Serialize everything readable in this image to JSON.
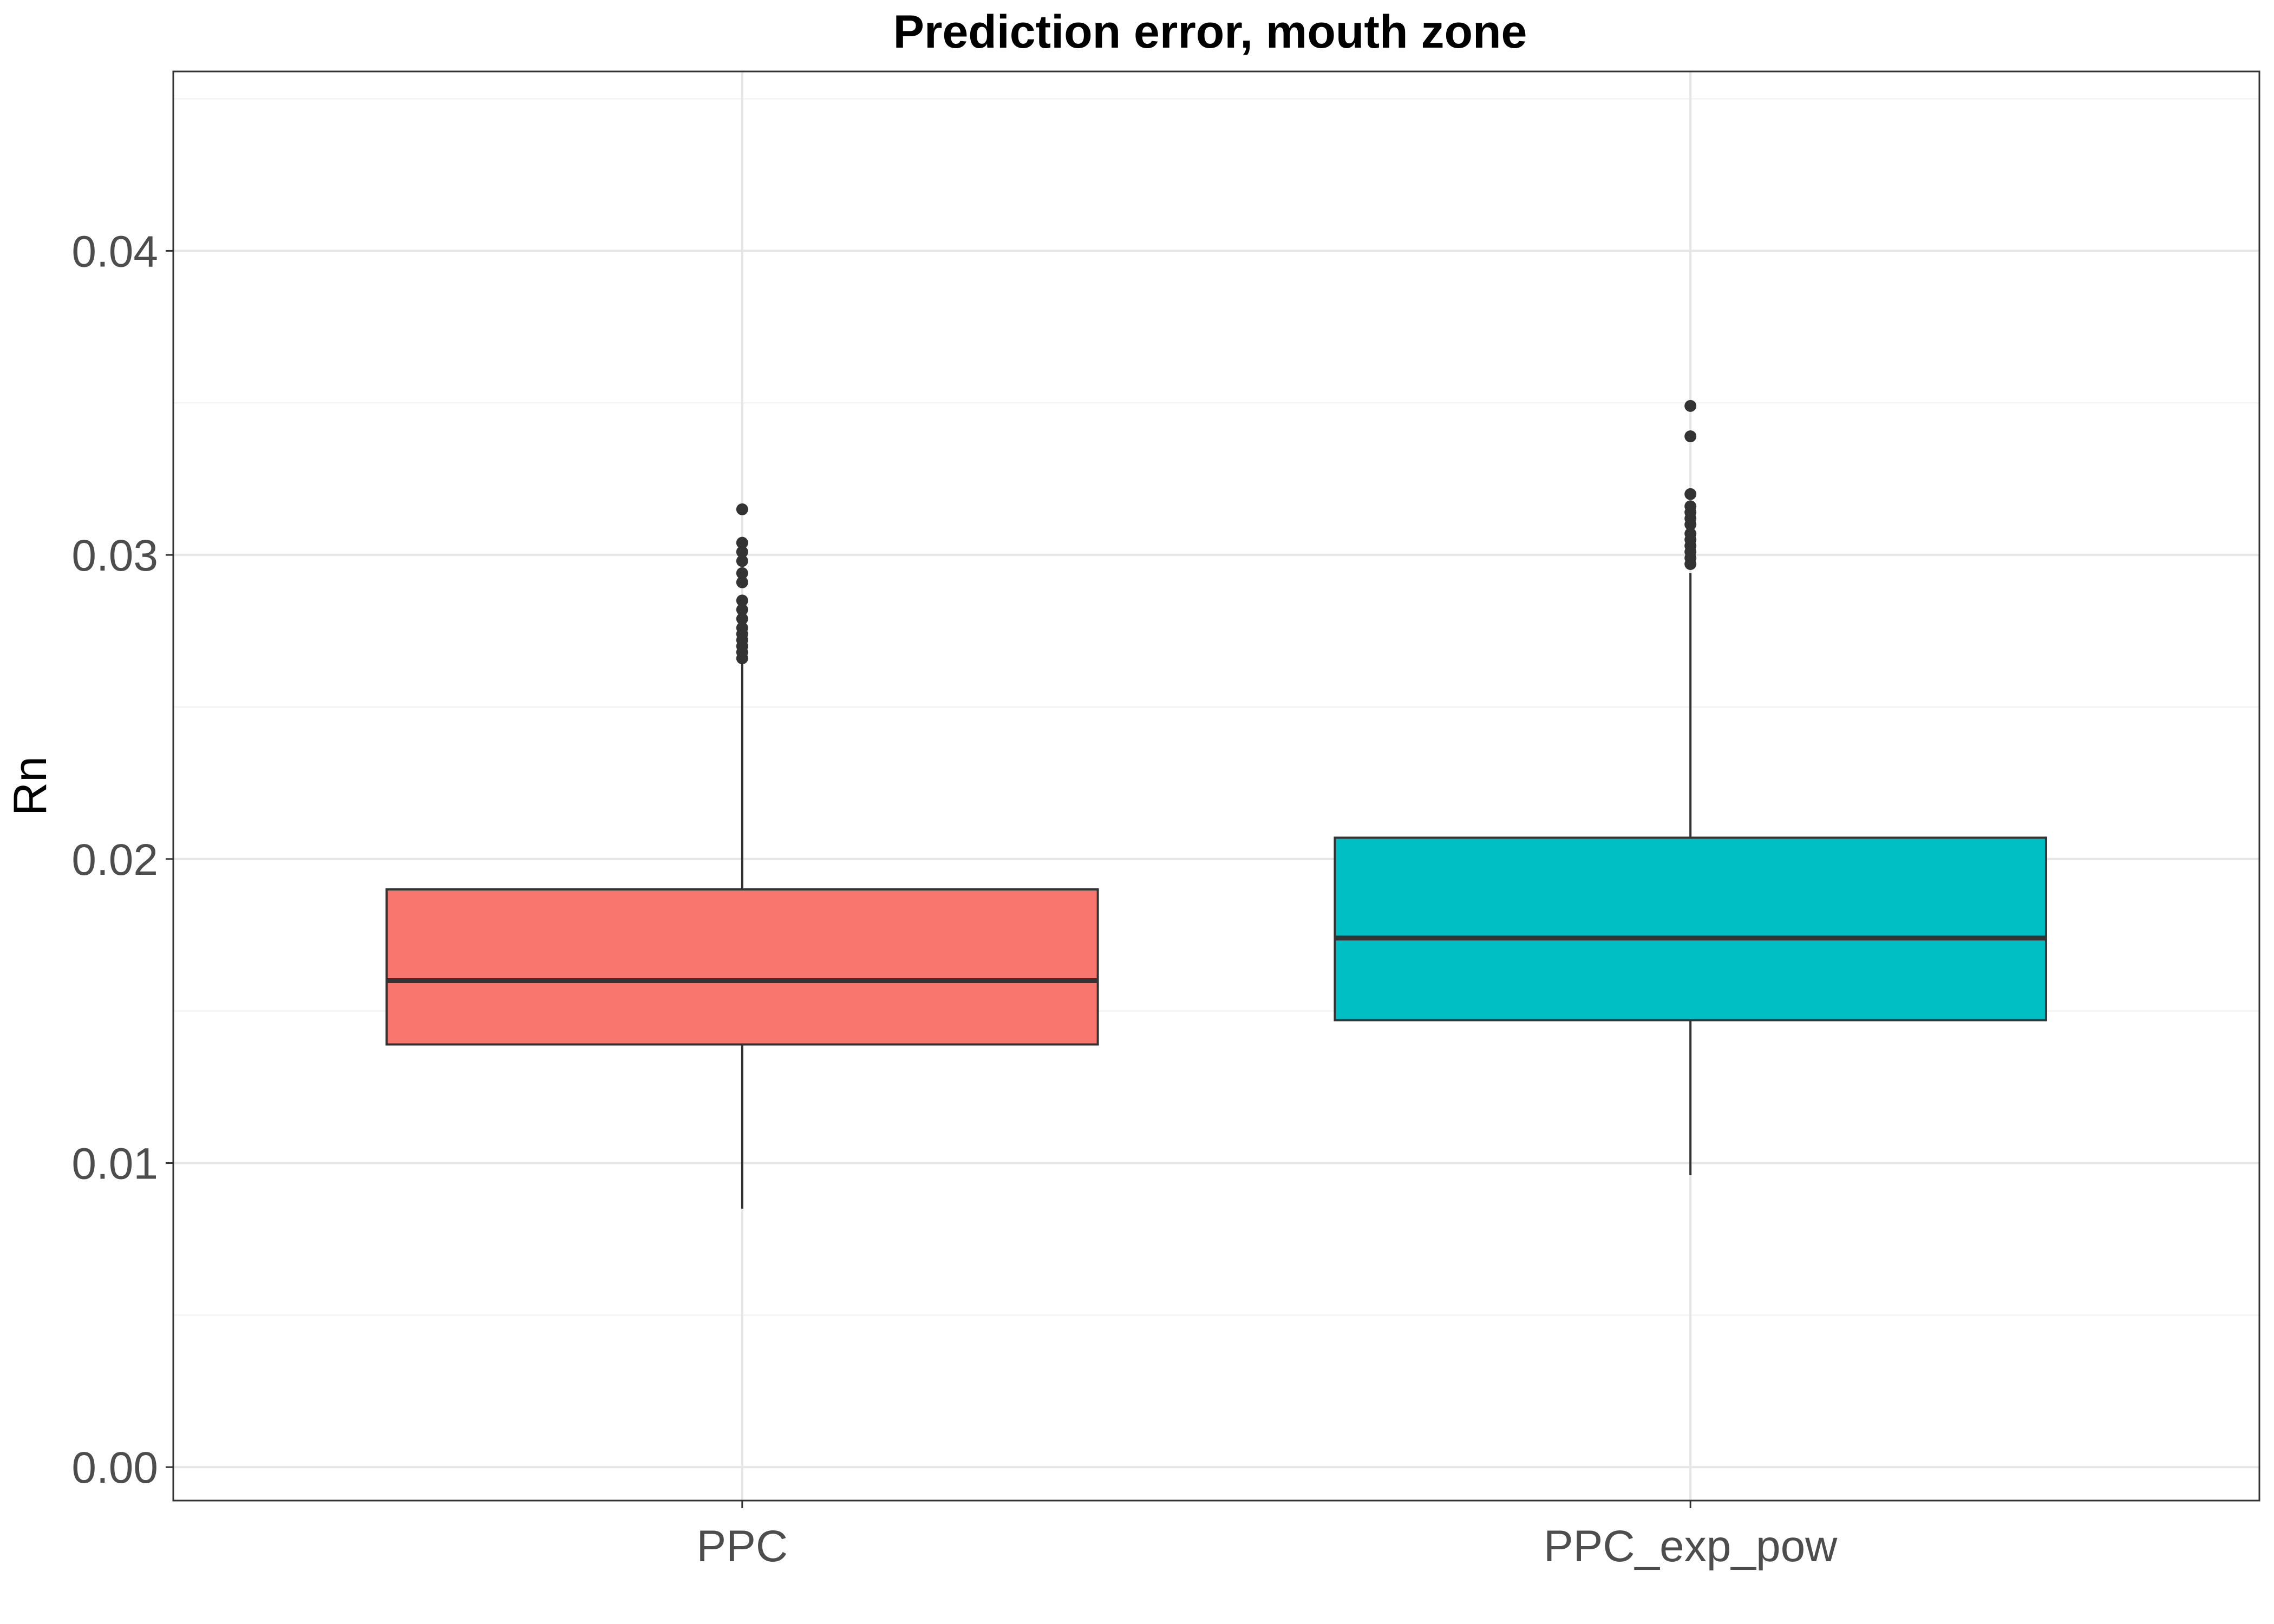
{
  "chart_data": {
    "type": "boxplot",
    "title": "Prediction error, mouth zone",
    "xlabel": "",
    "ylabel": "Rn",
    "ylim": [
      -0.0011,
      0.0459
    ],
    "yticks": [
      0.0,
      0.01,
      0.02,
      0.03,
      0.04
    ],
    "ytick_labels": [
      "0.00",
      "0.01",
      "0.02",
      "0.03",
      "0.04"
    ],
    "grid": true,
    "legend": "none",
    "categories": [
      "PPC",
      "PPC_exp_pow"
    ],
    "series": [
      {
        "category": "PPC",
        "color": "#F8766D",
        "min": 0.0085,
        "q1": 0.0139,
        "median": 0.016,
        "q3": 0.019,
        "max": 0.0265,
        "outliers": [
          0.0266,
          0.0268,
          0.027,
          0.0272,
          0.0274,
          0.0276,
          0.0279,
          0.0282,
          0.0285,
          0.0291,
          0.0294,
          0.0298,
          0.0301,
          0.0304,
          0.0315
        ]
      },
      {
        "category": "PPC_exp_pow",
        "color": "#00BFC4",
        "min": 0.0096,
        "q1": 0.0147,
        "median": 0.0174,
        "q3": 0.0207,
        "max": 0.0294,
        "outliers": [
          0.0297,
          0.0299,
          0.0301,
          0.0303,
          0.0305,
          0.0307,
          0.031,
          0.0312,
          0.0314,
          0.0316,
          0.032,
          0.0339,
          0.0349
        ]
      }
    ]
  }
}
